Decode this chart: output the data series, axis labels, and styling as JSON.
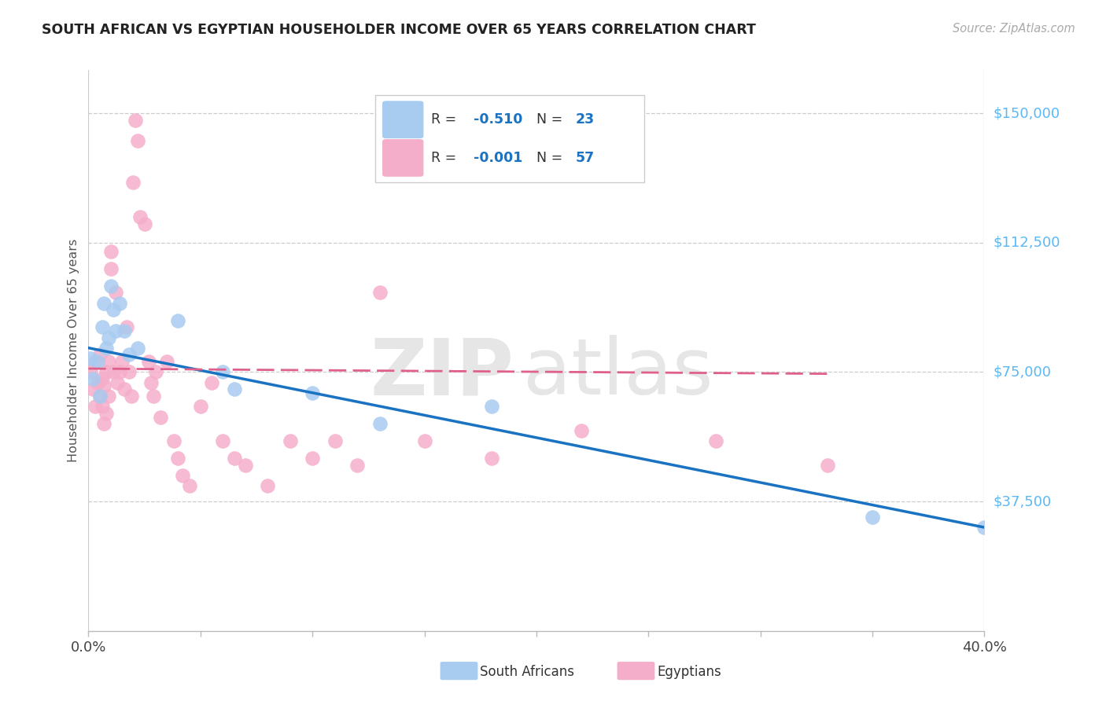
{
  "title": "SOUTH AFRICAN VS EGYPTIAN HOUSEHOLDER INCOME OVER 65 YEARS CORRELATION CHART",
  "source": "Source: ZipAtlas.com",
  "ylabel": "Householder Income Over 65 years",
  "legend_sa_r": "R = ",
  "legend_sa_rv": "-0.510",
  "legend_sa_n": "N = ",
  "legend_sa_nv": "23",
  "legend_eg_r": "R = ",
  "legend_eg_rv": "-0.001",
  "legend_eg_n": "N = ",
  "legend_eg_nv": "57",
  "bottom_legend_sa": "South Africans",
  "bottom_legend_eg": "Egyptians",
  "sa_color": "#A8CBF0",
  "eg_color": "#F5AECA",
  "sa_line_color": "#1A72C2",
  "eg_line_color": "#E0608C",
  "ytick_labels": [
    "$150,000",
    "$112,500",
    "$75,000",
    "$37,500"
  ],
  "ytick_values": [
    150000,
    112500,
    75000,
    37500
  ],
  "xmin": 0.0,
  "xmax": 0.4,
  "ymin": 0,
  "ymax": 162500,
  "sa_x": [
    0.001,
    0.002,
    0.004,
    0.005,
    0.006,
    0.007,
    0.008,
    0.009,
    0.01,
    0.011,
    0.012,
    0.014,
    0.016,
    0.018,
    0.022,
    0.04,
    0.06,
    0.065,
    0.1,
    0.13,
    0.18,
    0.35,
    0.4
  ],
  "sa_y": [
    79000,
    73000,
    78000,
    68000,
    88000,
    95000,
    82000,
    85000,
    100000,
    93000,
    87000,
    95000,
    87000,
    80000,
    82000,
    90000,
    75000,
    70000,
    69000,
    60000,
    65000,
    33000,
    30000
  ],
  "eg_x": [
    0.001,
    0.002,
    0.003,
    0.003,
    0.004,
    0.005,
    0.005,
    0.006,
    0.006,
    0.007,
    0.007,
    0.008,
    0.008,
    0.009,
    0.009,
    0.01,
    0.01,
    0.011,
    0.012,
    0.013,
    0.014,
    0.015,
    0.016,
    0.017,
    0.018,
    0.019,
    0.02,
    0.021,
    0.022,
    0.023,
    0.025,
    0.027,
    0.028,
    0.029,
    0.03,
    0.032,
    0.035,
    0.038,
    0.04,
    0.042,
    0.045,
    0.05,
    0.055,
    0.06,
    0.065,
    0.07,
    0.08,
    0.09,
    0.1,
    0.11,
    0.12,
    0.13,
    0.15,
    0.18,
    0.22,
    0.28,
    0.33
  ],
  "eg_y": [
    75000,
    70000,
    78000,
    65000,
    72000,
    68000,
    80000,
    73000,
    65000,
    71000,
    60000,
    75000,
    63000,
    68000,
    78000,
    105000,
    110000,
    75000,
    98000,
    72000,
    75000,
    78000,
    70000,
    88000,
    75000,
    68000,
    130000,
    148000,
    142000,
    120000,
    118000,
    78000,
    72000,
    68000,
    75000,
    62000,
    78000,
    55000,
    50000,
    45000,
    42000,
    65000,
    72000,
    55000,
    50000,
    48000,
    42000,
    55000,
    50000,
    55000,
    48000,
    98000,
    55000,
    50000,
    58000,
    55000,
    48000
  ]
}
